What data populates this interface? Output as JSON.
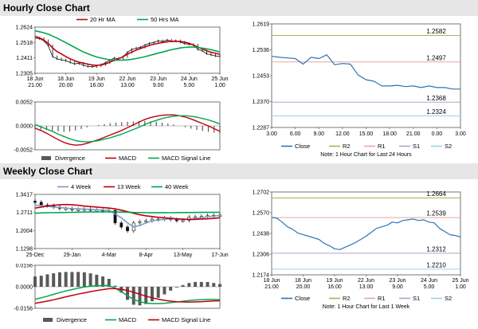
{
  "sections": {
    "hourly_title": "Hourly Close Chart",
    "weekly_title": "Weekly Close Chart"
  },
  "colors": {
    "ma_short": "#c0000c",
    "ma_long": "#00a651",
    "ma_mid": "#7a9cc6",
    "close": "#2e75b6",
    "r2": "#9bbb59",
    "r1": "#e6a7a0",
    "s1": "#b3a2c7",
    "s2": "#9dd0e6",
    "divergence": "#595959"
  },
  "chart_data": [
    {
      "id": "hourly_price",
      "type": "line",
      "legend": [
        "20 Hr MA",
        "50 Hrs MA"
      ],
      "ylim": [
        1.2305,
        1.2624
      ],
      "yticks": [
        "1.2624",
        "1.2518",
        "1.2411",
        "1.2305"
      ],
      "xtick_labels": [
        [
          "18 Jun",
          "18 Jun",
          "19 Jun",
          "22 Jun",
          "23 Jun",
          "24 Jun",
          "25 Jun"
        ],
        [
          "21.00",
          "20.00",
          "16.00",
          "13.00",
          "9.00",
          "5.00",
          "1.00"
        ]
      ],
      "series": [
        {
          "name": "Close",
          "values": [
            1.2548,
            1.2545,
            1.253,
            1.2495,
            1.242,
            1.2405,
            1.2398,
            1.2392,
            1.238,
            1.237,
            1.2375,
            1.236,
            1.2352,
            1.235,
            1.2355,
            1.2365,
            1.2378,
            1.2395,
            1.241,
            1.2405,
            1.242,
            1.245,
            1.247,
            1.2478,
            1.2485,
            1.25,
            1.2512,
            1.2518,
            1.253,
            1.2524,
            1.2535,
            1.2528,
            1.253,
            1.252,
            1.251,
            1.2505,
            1.25,
            1.247,
            1.246,
            1.244,
            1.2432,
            1.2425,
            1.242
          ]
        },
        {
          "name": "20 Hr MA",
          "values": [
            1.256,
            1.255,
            1.2535,
            1.251,
            1.248,
            1.2455,
            1.2438,
            1.242,
            1.2405,
            1.2392,
            1.2382,
            1.2375,
            1.2368,
            1.2362,
            1.236,
            1.2362,
            1.237,
            1.2382,
            1.2395,
            1.2405,
            1.242,
            1.2437,
            1.2452,
            1.2465,
            1.2477,
            1.2487,
            1.2498,
            1.2506,
            1.2512,
            1.2518,
            1.2522,
            1.2525,
            1.2526,
            1.2525,
            1.252,
            1.2512,
            1.25,
            1.2486,
            1.2473,
            1.246,
            1.245,
            1.2443,
            1.2436
          ]
        },
        {
          "name": "50 Hrs MA",
          "values": [
            1.2598,
            1.2592,
            1.2585,
            1.2575,
            1.2562,
            1.2548,
            1.2532,
            1.2516,
            1.25,
            1.2484,
            1.2468,
            1.2452,
            1.244,
            1.2428,
            1.2418,
            1.241,
            1.2404,
            1.2398,
            1.2396,
            1.2395,
            1.2396,
            1.2398,
            1.2402,
            1.2407,
            1.2413,
            1.242,
            1.2428,
            1.2436,
            1.2444,
            1.2452,
            1.246,
            1.2468,
            1.2474,
            1.248,
            1.2484,
            1.2486,
            1.2486,
            1.2484,
            1.2479,
            1.2474,
            1.2468,
            1.246,
            1.2453
          ]
        }
      ]
    },
    {
      "id": "hourly_macd",
      "type": "line",
      "legend": [
        "Divergence",
        "MACD",
        "MACD Signal Line"
      ],
      "ylim": [
        -0.0052,
        0.0052
      ],
      "yticks": [
        "0.0052",
        "0.0000",
        "-0.0052"
      ],
      "series": [
        {
          "name": "MACD",
          "values": [
            -0.0005,
            -0.001,
            -0.0016,
            -0.0023,
            -0.003,
            -0.0036,
            -0.004,
            -0.0042,
            -0.0041,
            -0.0038,
            -0.0034,
            -0.003,
            -0.0025,
            -0.002,
            -0.0015,
            -0.001,
            -0.0004,
            0.0002,
            0.0008,
            0.0014,
            0.0018,
            0.0021,
            0.0023,
            0.0024,
            0.0024,
            0.0022,
            0.0019,
            0.0015,
            0.001,
            0.0005,
            0.0,
            -0.0006,
            -0.0012
          ]
        },
        {
          "name": "MACD Signal Line",
          "values": [
            0.0003,
            -0.0002,
            -0.0007,
            -0.0012,
            -0.0018,
            -0.0023,
            -0.0028,
            -0.0032,
            -0.0034,
            -0.0035,
            -0.0034,
            -0.0032,
            -0.0029,
            -0.0026,
            -0.0022,
            -0.0018,
            -0.0013,
            -0.0008,
            -0.0003,
            0.0003,
            0.0008,
            0.0012,
            0.0016,
            0.0019,
            0.0021,
            0.0022,
            0.0022,
            0.0021,
            0.0019,
            0.0016,
            0.0013,
            0.0009,
            0.0004
          ]
        }
      ]
    },
    {
      "id": "hourly_close_levels",
      "type": "line",
      "legend": [
        "Close",
        "R2",
        "R1",
        "S1",
        "S2"
      ],
      "note": "Note: 1 Hour Chart for Last 24 Hours",
      "ylim": [
        1.2287,
        1.2619
      ],
      "yticks": [
        "1.2619",
        "1.2536",
        "1.2453",
        "1.2370",
        "1.2287"
      ],
      "xticks": [
        "3.00",
        "6.00",
        "9.00",
        "12.00",
        "15.00",
        "18.00",
        "21.00",
        "0.00",
        "3.00"
      ],
      "levels": [
        {
          "name": "R2",
          "value": 1.2582,
          "label": "1.2582"
        },
        {
          "name": "R1",
          "value": 1.2497,
          "label": "1.2497"
        },
        {
          "name": "S1",
          "value": 1.2368,
          "label": "1.2368"
        },
        {
          "name": "S2",
          "value": 1.2324,
          "label": "1.2324"
        }
      ],
      "x": [
        3,
        4,
        5,
        6,
        7,
        8,
        9,
        10,
        11,
        12,
        13,
        14,
        15,
        16,
        17,
        18,
        19,
        20,
        21,
        22,
        23,
        24,
        25,
        26,
        27
      ],
      "series": [
        {
          "name": "Close",
          "values": [
            1.2515,
            1.2512,
            1.251,
            1.2508,
            1.249,
            1.2512,
            1.2508,
            1.252,
            1.2488,
            1.2492,
            1.249,
            1.2455,
            1.244,
            1.2435,
            1.242,
            1.242,
            1.2422,
            1.2418,
            1.242,
            1.2415,
            1.242,
            1.2415,
            1.2415,
            1.241,
            1.241
          ]
        }
      ]
    },
    {
      "id": "weekly_price",
      "type": "line",
      "legend": [
        "4 Week",
        "13 Week",
        "40 Week"
      ],
      "ylim": [
        1.1298,
        1.3417
      ],
      "yticks": [
        "1.3417",
        "1.2711",
        "1.2004",
        "1.1298"
      ],
      "xticks": [
        "25-Dec",
        "29-Jan",
        "4-Mar",
        "8-Apr",
        "13-May",
        "17-Jun"
      ],
      "series": [
        {
          "name": "Close",
          "values": [
            1.311,
            1.3,
            1.298,
            1.292,
            1.286,
            1.286,
            1.282,
            1.283,
            1.284,
            1.279,
            1.28,
            1.278,
            1.279,
            1.23,
            1.214,
            1.199,
            1.23,
            1.235,
            1.239,
            1.245,
            1.244,
            1.249,
            1.243,
            1.239,
            1.24,
            1.253,
            1.254,
            1.256,
            1.259,
            1.26,
            1.261
          ]
        },
        {
          "name": "4 Week",
          "values": [
            1.3,
            1.298,
            1.295,
            1.292,
            1.29,
            1.288,
            1.286,
            1.285,
            1.284,
            1.283,
            1.282,
            1.28,
            1.279,
            1.265,
            1.25,
            1.23,
            1.215,
            1.22,
            1.23,
            1.238,
            1.242,
            1.244,
            1.246,
            1.245,
            1.243,
            1.244,
            1.247,
            1.25,
            1.254,
            1.257,
            1.259
          ]
        },
        {
          "name": "13 Week",
          "values": [
            1.288,
            1.292,
            1.296,
            1.299,
            1.301,
            1.302,
            1.301,
            1.299,
            1.296,
            1.294,
            1.292,
            1.29,
            1.288,
            1.285,
            1.28,
            1.274,
            1.268,
            1.262,
            1.258,
            1.255,
            1.252,
            1.25,
            1.248,
            1.246,
            1.245,
            1.244,
            1.244,
            1.245,
            1.246,
            1.248,
            1.25
          ]
        },
        {
          "name": "40 Week",
          "values": [
            1.268,
            1.269,
            1.27,
            1.27,
            1.2705,
            1.271,
            1.2715,
            1.272,
            1.2725,
            1.2728,
            1.273,
            1.2732,
            1.2733,
            1.273,
            1.2725,
            1.2718,
            1.271,
            1.2705,
            1.27,
            1.2698,
            1.2698,
            1.2698,
            1.27,
            1.2702,
            1.2705,
            1.2708,
            1.271,
            1.2712,
            1.2714,
            1.2716,
            1.2718
          ]
        }
      ]
    },
    {
      "id": "weekly_macd",
      "type": "line",
      "legend": [
        "Divergence",
        "MACD",
        "MACD Signal Line"
      ],
      "ylim": [
        -0.0156,
        0.0156
      ],
      "yticks": [
        "0.0156",
        "0.0000",
        "-0.0156"
      ],
      "series": [
        {
          "name": "MACD",
          "values": [
            -0.009,
            -0.008,
            -0.0068,
            -0.0055,
            -0.0042,
            -0.003,
            -0.002,
            -0.001,
            -0.0002,
            0.0004,
            0.0008,
            0.001,
            0.0009,
            -0.001,
            -0.0035,
            -0.0065,
            -0.0092,
            -0.0108,
            -0.0118,
            -0.0122,
            -0.0122,
            -0.012,
            -0.0115,
            -0.011,
            -0.0105,
            -0.01,
            -0.0096,
            -0.0094,
            -0.0092,
            -0.0092,
            -0.0093
          ]
        },
        {
          "name": "MACD Signal Line",
          "values": [
            -0.012,
            -0.0112,
            -0.0104,
            -0.0094,
            -0.0084,
            -0.0073,
            -0.0063,
            -0.0053,
            -0.0044,
            -0.0035,
            -0.0027,
            -0.002,
            -0.0014,
            -0.0013,
            -0.0018,
            -0.0027,
            -0.004,
            -0.0054,
            -0.0068,
            -0.008,
            -0.009,
            -0.0098,
            -0.0104,
            -0.0108,
            -0.011,
            -0.0111,
            -0.011,
            -0.0108,
            -0.0106,
            -0.0103,
            -0.0101
          ]
        }
      ]
    },
    {
      "id": "weekly_close_levels",
      "type": "line",
      "legend": [
        "Close",
        "R2",
        "R1",
        "S1",
        "S2"
      ],
      "note": "Note: 1 Hour Chart for Last 1 Week",
      "ylim": [
        1.2174,
        1.2702
      ],
      "yticks": [
        "1.2702",
        "1.2570",
        "1.2438",
        "1.2306",
        "1.2174"
      ],
      "xtick_labels": [
        [
          "18 Jun",
          "18 Jun",
          "19 Jun",
          "22 Jun",
          "23 Jun",
          "24 Jun",
          "25 Jun"
        ],
        [
          "21.00",
          "20.00",
          "16.00",
          "13.00",
          "9.00",
          "5.00",
          "1.00"
        ]
      ],
      "levels": [
        {
          "name": "R2",
          "value": 1.2664,
          "label": "1.2664"
        },
        {
          "name": "R1",
          "value": 1.2539,
          "label": "1.2539"
        },
        {
          "name": "S1",
          "value": 1.2312,
          "label": "1.2312"
        },
        {
          "name": "S2",
          "value": 1.221,
          "label": "1.2210"
        }
      ],
      "series": [
        {
          "name": "Close",
          "values": [
            1.254,
            1.2535,
            1.251,
            1.248,
            1.2465,
            1.244,
            1.243,
            1.242,
            1.241,
            1.24,
            1.2375,
            1.236,
            1.234,
            1.2335,
            1.235,
            1.2365,
            1.238,
            1.24,
            1.242,
            1.2445,
            1.247,
            1.248,
            1.249,
            1.251,
            1.2505,
            1.252,
            1.2525,
            1.253,
            1.252,
            1.2525,
            1.251,
            1.2505,
            1.247,
            1.245,
            1.243,
            1.2425,
            1.2415
          ]
        }
      ]
    }
  ]
}
